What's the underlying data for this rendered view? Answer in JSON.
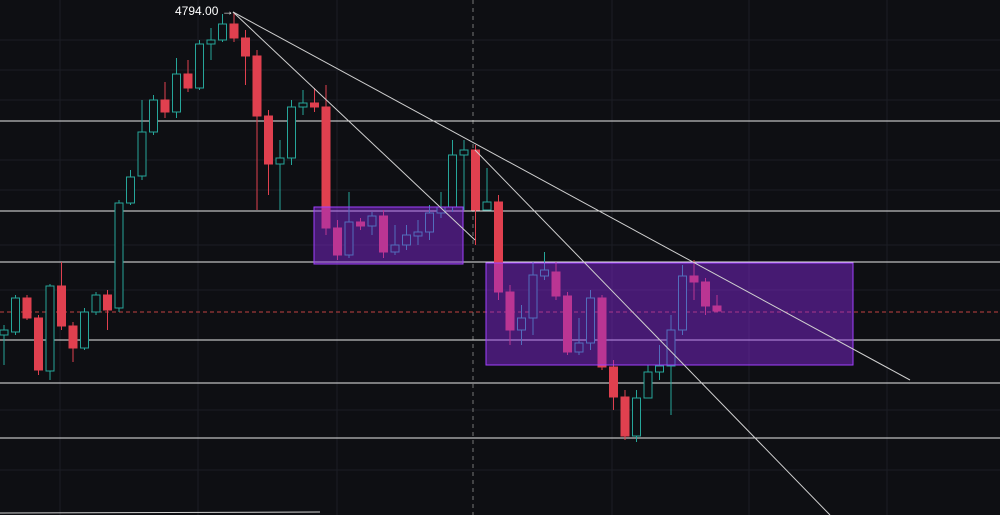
{
  "chart_data": {
    "type": "candlestick",
    "high_label": "4794.00 →",
    "ylim": [
      4542.5,
      4800
    ],
    "up_color": "#26a69a",
    "down_color": "#e0404f",
    "open": [
      4632.5,
      4634,
      4651,
      4641,
      4614.5,
      4657,
      4637,
      4626,
      4644,
      4652.5,
      4646,
      4698.5,
      4712,
      4734,
      4750,
      4744,
      4763,
      4756,
      4778,
      4780,
      4788,
      4781,
      4772,
      4742,
      4718,
      4721,
      4746.5,
      4748.5,
      4746.5,
      4686,
      4672.5,
      4689,
      4687,
      4692,
      4674,
      4677.5,
      4682,
      4684,
      4693.5,
      4696.5,
      4722.5,
      4725,
      4695,
      4699,
      4654,
      4635,
      4641,
      4662,
      4664,
      4652,
      4624,
      4628.5,
      4651,
      4616.5,
      4601.5,
      4582,
      4601,
      4614,
      4617,
      4635,
      4662,
      4659,
      4647
    ],
    "close": [
      4635,
      4651,
      4641,
      4615,
      4657,
      4637,
      4626,
      4644,
      4652.5,
      4645,
      4698.5,
      4711.5,
      4734,
      4750,
      4744,
      4763,
      4756,
      4778,
      4780,
      4788,
      4781,
      4772,
      4742,
      4718,
      4721,
      4746.5,
      4748.5,
      4746.5,
      4686,
      4672.5,
      4689,
      4687,
      4692,
      4674,
      4677.5,
      4682.5,
      4684,
      4693.5,
      4696.5,
      4722.5,
      4725,
      4695,
      4699,
      4654,
      4635,
      4641,
      4662.5,
      4665,
      4652,
      4624,
      4628.5,
      4651,
      4616.5,
      4601.5,
      4582,
      4601,
      4614,
      4617,
      4635,
      4662,
      4659,
      4647,
      4644.5
    ],
    "high": [
      4637.5,
      4652.5,
      4652.5,
      4642.5,
      4658,
      4669,
      4639,
      4646,
      4654,
      4655,
      4700,
      4715,
      4750,
      4752.5,
      4759,
      4771,
      4770,
      4780,
      4786,
      4793,
      4794,
      4785,
      4775,
      4745,
      4730,
      4750,
      4755,
      4756,
      4757.5,
      4690,
      4704,
      4691,
      4694,
      4695,
      4687.5,
      4687.5,
      4690,
      4697.5,
      4704,
      4730,
      4730,
      4727.5,
      4716,
      4702.5,
      4657.5,
      4647.5,
      4669,
      4674,
      4669,
      4654,
      4641,
      4655,
      4652.5,
      4620,
      4605,
      4605,
      4617.5,
      4627.5,
      4642.5,
      4667.5,
      4670,
      4661,
      4652.5
    ],
    "low": [
      4617.5,
      4632.5,
      4640,
      4612.5,
      4610,
      4635,
      4619,
      4625,
      4642.5,
      4635,
      4644,
      4697.5,
      4710,
      4732.5,
      4741,
      4741,
      4754,
      4755,
      4770,
      4779,
      4779,
      4757.5,
      4695,
      4702.5,
      4695,
      4717.5,
      4742.5,
      4744,
      4682.5,
      4670,
      4671,
      4685,
      4682.5,
      4671,
      4672.5,
      4675,
      4677.5,
      4680,
      4691,
      4694,
      4695,
      4677.5,
      4695,
      4650,
      4627.5,
      4627.5,
      4632.5,
      4660,
      4650,
      4622.5,
      4622.5,
      4625,
      4615,
      4595,
      4580,
      4579,
      4601,
      4610,
      4592.5,
      4632.5,
      4650,
      4642.5,
      4644
    ],
    "levels": [
      4739.5,
      4694.5,
      4669,
      4630,
      4608.5,
      4581
    ],
    "current_price": 4644
  }
}
